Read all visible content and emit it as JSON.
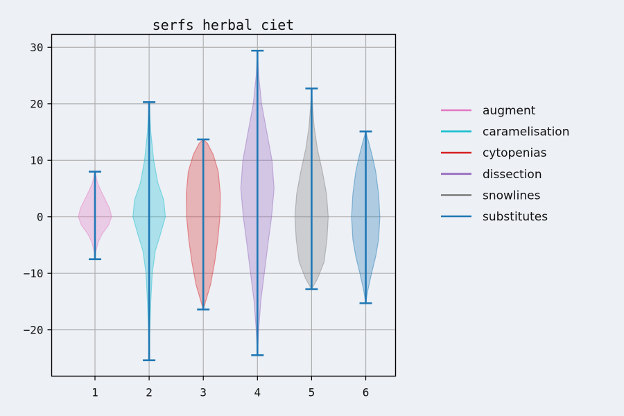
{
  "chart_data": {
    "type": "violin",
    "title": "serfs herbal ciet",
    "xlabel": "",
    "ylabel": "",
    "xlim": [
      0.2,
      6.55
    ],
    "ylim": [
      -28.2,
      32.3
    ],
    "xticks": [
      "1",
      "2",
      "3",
      "4",
      "5",
      "6"
    ],
    "yticks": [
      30,
      20,
      10,
      0,
      -10,
      -20
    ],
    "ytick_labels": [
      "30",
      "20",
      "10",
      "0",
      "−10",
      "−20"
    ],
    "grid": true,
    "legend_position": "right",
    "series": [
      {
        "name": "augment",
        "position": 1,
        "color": "#e377c2",
        "min": -7.5,
        "max": 8.0,
        "profile": [
          [
            -7.5,
            0.0
          ],
          [
            -6.0,
            0.05
          ],
          [
            -4.5,
            0.15
          ],
          [
            -3.0,
            0.35
          ],
          [
            -1.5,
            0.65
          ],
          [
            0.0,
            0.8
          ],
          [
            1.5,
            0.7
          ],
          [
            3.0,
            0.5
          ],
          [
            4.5,
            0.3
          ],
          [
            6.0,
            0.12
          ],
          [
            8.0,
            0.0
          ]
        ]
      },
      {
        "name": "caramelisation",
        "position": 2,
        "color": "#17becf",
        "min": -25.4,
        "max": 20.3,
        "profile": [
          [
            -25.4,
            0.0
          ],
          [
            -20.0,
            0.03
          ],
          [
            -15.0,
            0.08
          ],
          [
            -10.0,
            0.15
          ],
          [
            -6.0,
            0.3
          ],
          [
            -3.0,
            0.55
          ],
          [
            0.0,
            0.78
          ],
          [
            3.0,
            0.7
          ],
          [
            6.0,
            0.42
          ],
          [
            10.0,
            0.22
          ],
          [
            15.0,
            0.08
          ],
          [
            20.3,
            0.0
          ]
        ]
      },
      {
        "name": "cytopenias",
        "position": 3,
        "color": "#d62728",
        "min": -16.4,
        "max": 13.7,
        "profile": [
          [
            -16.4,
            0.0
          ],
          [
            -14.5,
            0.15
          ],
          [
            -12.0,
            0.35
          ],
          [
            -8.0,
            0.55
          ],
          [
            -4.0,
            0.7
          ],
          [
            0.0,
            0.8
          ],
          [
            4.0,
            0.82
          ],
          [
            8.0,
            0.72
          ],
          [
            11.0,
            0.48
          ],
          [
            13.0,
            0.2
          ],
          [
            13.7,
            0.0
          ]
        ]
      },
      {
        "name": "dissection",
        "position": 4,
        "color": "#9467bd",
        "min": -24.5,
        "max": 29.4,
        "profile": [
          [
            -24.5,
            0.0
          ],
          [
            -20.0,
            0.06
          ],
          [
            -15.0,
            0.16
          ],
          [
            -10.0,
            0.33
          ],
          [
            -5.0,
            0.5
          ],
          [
            0.0,
            0.68
          ],
          [
            5.0,
            0.8
          ],
          [
            10.0,
            0.7
          ],
          [
            15.0,
            0.45
          ],
          [
            20.0,
            0.2
          ],
          [
            25.0,
            0.06
          ],
          [
            29.4,
            0.0
          ]
        ]
      },
      {
        "name": "snowlines",
        "position": 5,
        "color": "#7f7f7f",
        "min": -12.8,
        "max": 22.7,
        "profile": [
          [
            -12.8,
            0.0
          ],
          [
            -11.0,
            0.28
          ],
          [
            -8.0,
            0.6
          ],
          [
            -4.0,
            0.74
          ],
          [
            0.0,
            0.8
          ],
          [
            4.0,
            0.72
          ],
          [
            8.0,
            0.52
          ],
          [
            12.0,
            0.28
          ],
          [
            16.0,
            0.12
          ],
          [
            20.0,
            0.04
          ],
          [
            22.7,
            0.0
          ]
        ]
      },
      {
        "name": "substitutes",
        "position": 6,
        "color": "#1f77b4",
        "min": -15.3,
        "max": 15.1,
        "profile": [
          [
            -15.3,
            0.0
          ],
          [
            -13.0,
            0.1
          ],
          [
            -10.0,
            0.28
          ],
          [
            -7.0,
            0.48
          ],
          [
            -4.0,
            0.62
          ],
          [
            0.0,
            0.68
          ],
          [
            4.0,
            0.62
          ],
          [
            8.0,
            0.48
          ],
          [
            11.0,
            0.3
          ],
          [
            13.5,
            0.12
          ],
          [
            15.1,
            0.0
          ]
        ]
      }
    ],
    "extrema_color": "#1f77b4"
  }
}
